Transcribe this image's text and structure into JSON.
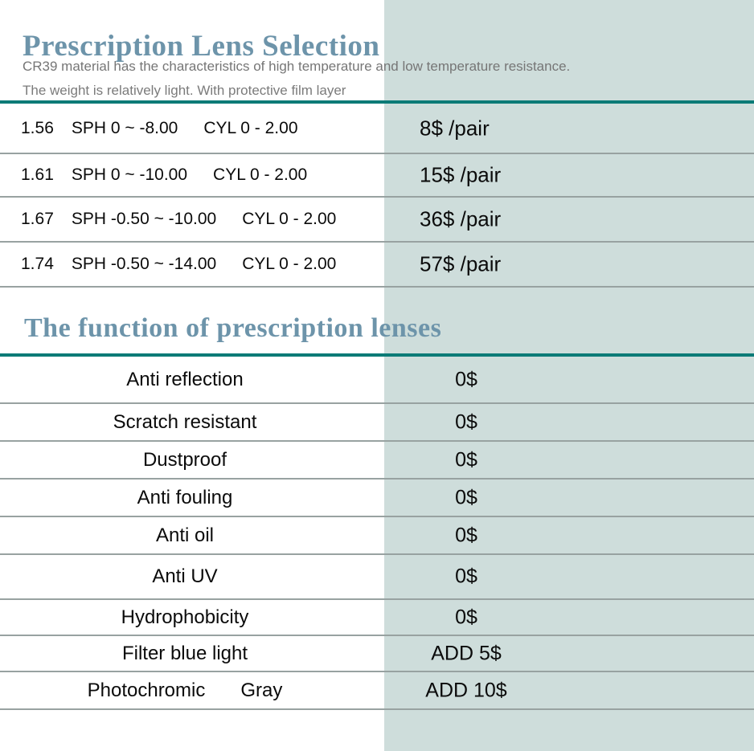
{
  "header": {
    "title": "Prescription Lens Selection",
    "subtitle_line1": "CR39 material has the characteristics of high temperature and low temperature resistance.",
    "subtitle_line2": "The weight is relatively light. With protective film layer"
  },
  "lens_table": {
    "rows": [
      {
        "index": "1.56",
        "sph": "SPH 0 ~ -8.00",
        "cyl": "CYL  0 - 2.00",
        "price": "8$ /pair"
      },
      {
        "index": "1.61",
        "sph": "SPH 0 ~ -10.00",
        "cyl": "CYL  0 - 2.00",
        "price": "15$ /pair"
      },
      {
        "index": "1.67",
        "sph": "SPH -0.50 ~ -10.00",
        "cyl": "CYL  0 - 2.00",
        "price": "36$ /pair"
      },
      {
        "index": "1.74",
        "sph": "SPH -0.50 ~ -14.00",
        "cyl": "CYL  0 - 2.00",
        "price": "57$ /pair"
      }
    ]
  },
  "functions_section": {
    "heading": "The function of prescription lenses",
    "rows": [
      {
        "label": "Anti reflection",
        "label2": "",
        "price": "0$"
      },
      {
        "label": "Scratch resistant",
        "label2": "",
        "price": "0$"
      },
      {
        "label": "Dustproof",
        "label2": "",
        "price": "0$"
      },
      {
        "label": "Anti fouling",
        "label2": "",
        "price": "0$"
      },
      {
        "label": "Anti oil",
        "label2": "",
        "price": "0$"
      },
      {
        "label": "Anti UV",
        "label2": "",
        "price": "0$"
      },
      {
        "label": "Hydrophobicity",
        "label2": "",
        "price": "0$"
      },
      {
        "label": "Filter blue light",
        "label2": "",
        "price": "ADD 5$"
      },
      {
        "label": "Photochromic",
        "label2": "Gray",
        "price": "ADD 10$"
      }
    ]
  },
  "colors": {
    "heading_blue": "#6d94aa",
    "divider_teal": "#0c7b77",
    "panel_teal": "#cedddb",
    "row_line_gray": "#98a2a1",
    "subtitle_gray": "#767676",
    "body_text": "#0b0b0b"
  }
}
